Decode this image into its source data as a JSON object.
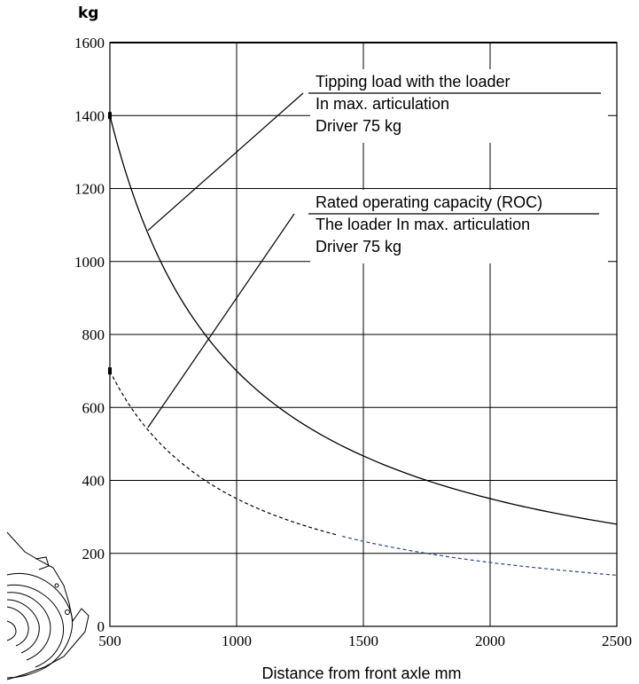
{
  "chart_data": {
    "type": "line",
    "y_unit": "kg",
    "xlabel": "Distance from front axle mm",
    "xlim": [
      500,
      2500
    ],
    "ylim": [
      0,
      1600
    ],
    "x_ticks": [
      "500",
      "1000",
      "1500",
      "2000",
      "2500"
    ],
    "y_ticks": [
      "0",
      "200",
      "400",
      "600",
      "800",
      "1000",
      "1200",
      "1400",
      "1600"
    ],
    "grid": true,
    "series": [
      {
        "id": "tipping",
        "line_style": "solid",
        "color": "#000000",
        "x": [
          500,
          600,
          700,
          800,
          900,
          1000,
          1250,
          1500,
          1750,
          2000,
          2250,
          2500
        ],
        "values": [
          1400,
          1167,
          1000,
          875,
          778,
          700,
          560,
          467,
          400,
          350,
          311,
          280
        ]
      },
      {
        "id": "roc",
        "line_style": "dashed",
        "color": "#000000",
        "tail_color": "#2a4a8a",
        "x": [
          500,
          600,
          700,
          800,
          900,
          1000,
          1250,
          1500,
          1750,
          2000,
          2250,
          2500
        ],
        "values": [
          700,
          583,
          500,
          438,
          389,
          350,
          280,
          233,
          200,
          175,
          156,
          140
        ]
      }
    ],
    "annotations": [
      {
        "id": "tipping-note",
        "lines": [
          "Tipping load with the loader",
          "In max. articulation",
          "Driver 75 kg"
        ],
        "pointer": {
          "x": 650,
          "y": 1085
        }
      },
      {
        "id": "roc-note",
        "lines": [
          "Rated operating capacity (ROC)",
          "The loader In max. articulation",
          "Driver 75 kg"
        ],
        "pointer": {
          "x": 650,
          "y": 545
        }
      }
    ]
  }
}
